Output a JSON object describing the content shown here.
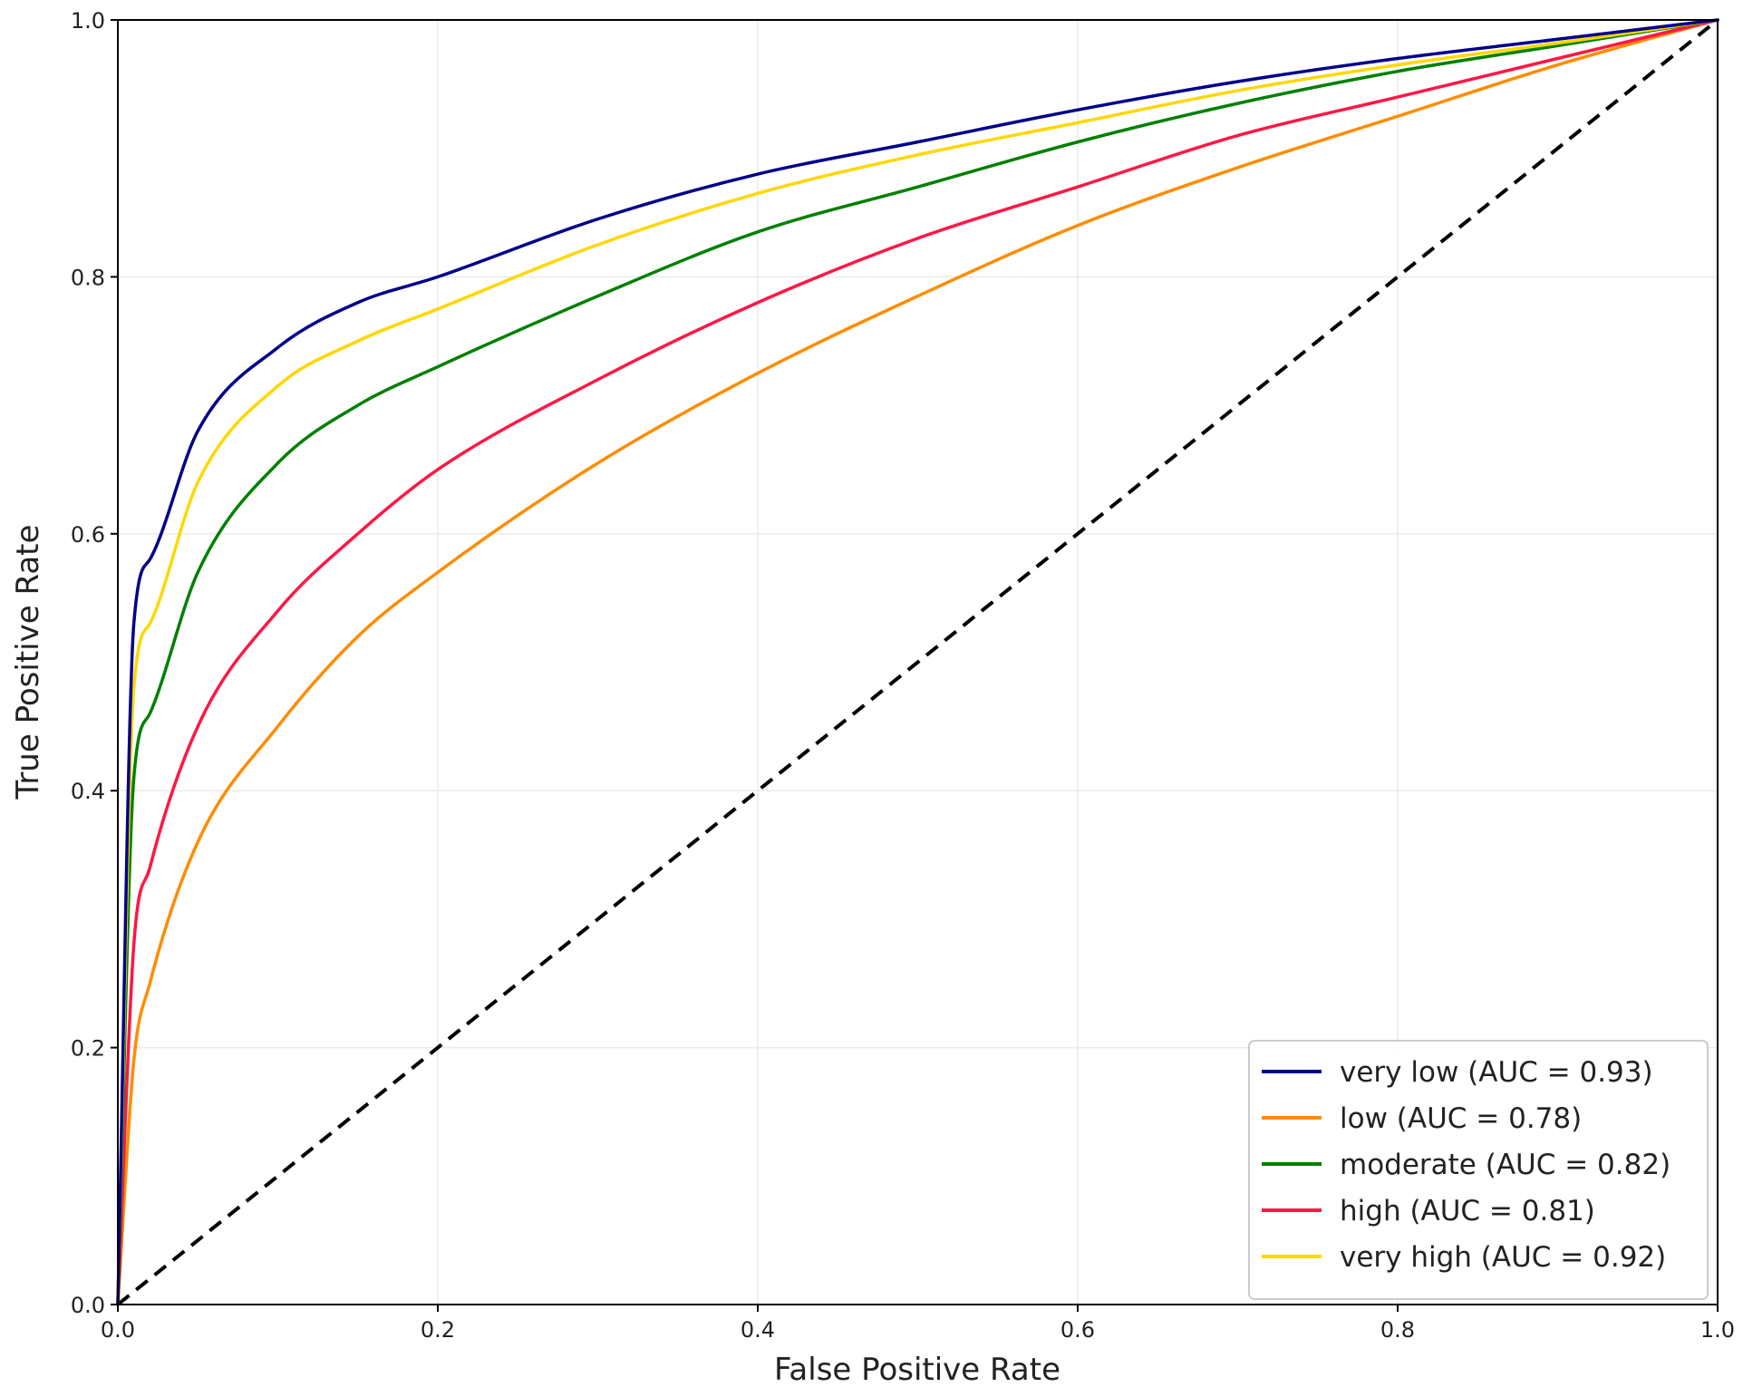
{
  "chart_data": {
    "type": "line",
    "title": "",
    "xlabel": "False Positive Rate",
    "ylabel": "True Positive Rate",
    "xlim": [
      0.0,
      1.0
    ],
    "ylim": [
      0.0,
      1.0
    ],
    "xticks": [
      "0.0",
      "0.2",
      "0.4",
      "0.6",
      "0.8",
      "1.0"
    ],
    "yticks": [
      "0.0",
      "0.2",
      "0.4",
      "0.6",
      "0.8",
      "1.0"
    ],
    "grid": true,
    "legend_position": "lower-right",
    "x": [
      0,
      0.01,
      0.02,
      0.05,
      0.1,
      0.15,
      0.2,
      0.3,
      0.4,
      0.5,
      0.6,
      0.7,
      0.8,
      0.9,
      1.0
    ],
    "series": [
      {
        "name": "very low (AUC = 0.93)",
        "color": "#00008b",
        "values": [
          0,
          0.53,
          0.58,
          0.68,
          0.745,
          0.78,
          0.8,
          0.845,
          0.88,
          0.905,
          0.93,
          0.952,
          0.97,
          0.985,
          1.0
        ]
      },
      {
        "name": "low (AUC = 0.78)",
        "color": "#ff8c00",
        "values": [
          0,
          0.19,
          0.25,
          0.36,
          0.45,
          0.52,
          0.57,
          0.655,
          0.725,
          0.785,
          0.84,
          0.885,
          0.925,
          0.965,
          1.0
        ]
      },
      {
        "name": "moderate (AUC = 0.82)",
        "color": "#008000",
        "values": [
          0,
          0.41,
          0.46,
          0.57,
          0.655,
          0.7,
          0.73,
          0.785,
          0.835,
          0.87,
          0.905,
          0.935,
          0.96,
          0.98,
          1.0
        ]
      },
      {
        "name": "high (AUC = 0.81)",
        "color": "#ff1744",
        "values": [
          0,
          0.28,
          0.34,
          0.45,
          0.54,
          0.6,
          0.65,
          0.72,
          0.78,
          0.83,
          0.87,
          0.91,
          0.94,
          0.97,
          1.0
        ]
      },
      {
        "name": "very high (AUC = 0.92)",
        "color": "#ffd700",
        "values": [
          0,
          0.48,
          0.53,
          0.64,
          0.715,
          0.75,
          0.775,
          0.825,
          0.865,
          0.895,
          0.92,
          0.945,
          0.965,
          0.982,
          1.0
        ]
      }
    ],
    "reference_line": {
      "name": "chance",
      "color": "#000000",
      "x": [
        0,
        1
      ],
      "y": [
        0,
        1
      ]
    }
  }
}
